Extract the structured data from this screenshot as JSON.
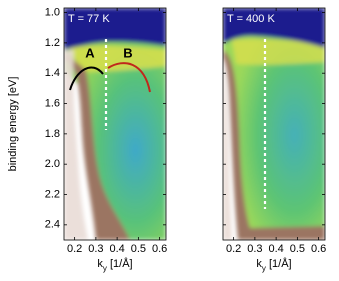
{
  "chart_data": [
    {
      "type": "heatmap",
      "title": "T = 77 K",
      "ylabel": "binding energy [eV]",
      "xlabel": [
        "k",
        "y",
        " [1/Å]"
      ],
      "xlim": [
        0.15,
        0.63
      ],
      "xticks": [
        0.2,
        0.3,
        0.4,
        0.5,
        0.6
      ],
      "ylim": [
        0.97,
        2.5
      ],
      "yticks": [
        {
          "value": 1,
          "label": "1.0"
        },
        1.2,
        1.4,
        1.6,
        1.8,
        {
          "value": 2,
          "label": "2.0"
        },
        2.2,
        2.4
      ],
      "show_ytick_labels": true,
      "annotations": [
        {
          "text": "A",
          "color": "#000000"
        },
        {
          "text": "B",
          "color": "#c0281c"
        }
      ]
    },
    {
      "type": "heatmap",
      "title": "T = 400 K",
      "xlabel": [
        "k",
        "y",
        " [1/Å]"
      ],
      "xlim": [
        0.15,
        0.63
      ],
      "xticks": [
        0.2,
        0.3,
        0.4,
        0.5,
        0.6
      ],
      "ylim": [
        0.97,
        2.5
      ],
      "yticks": [
        1,
        1.2,
        1.4,
        1.6,
        1.8,
        2,
        2.2,
        2.4
      ],
      "show_ytick_labels": false
    }
  ]
}
